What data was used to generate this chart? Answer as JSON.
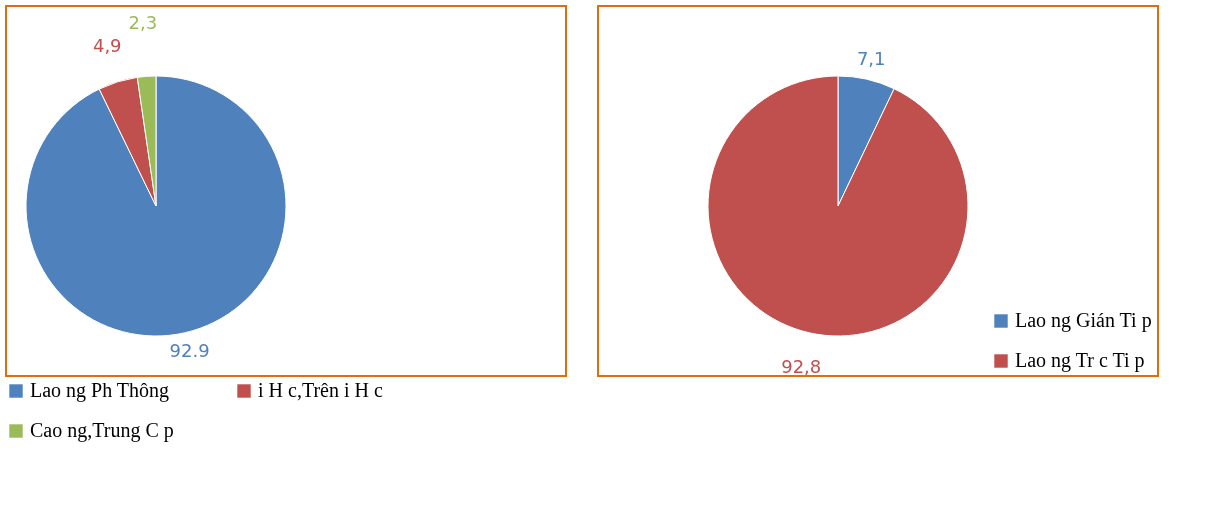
{
  "chart_data": [
    {
      "type": "pie",
      "categories": [
        "Lao ng Ph Thông",
        "i H c,Trên i H c",
        "Cao ng,Trung C p"
      ],
      "values": [
        92.9,
        4.9,
        2.3
      ],
      "colors": [
        "#4f81bd",
        "#c0504d",
        "#9bbb59"
      ],
      "value_labels": [
        "92.9",
        "4,9",
        "2,3"
      ],
      "legend": "bottom"
    },
    {
      "type": "pie",
      "categories": [
        "Lao ng Gián Ti p",
        "Lao ng Tr c Ti p"
      ],
      "values": [
        7.1,
        92.8
      ],
      "colors": [
        "#4f81bd",
        "#c0504d"
      ],
      "value_labels": [
        "7,1",
        "92,8"
      ],
      "legend": "bottom right"
    }
  ]
}
